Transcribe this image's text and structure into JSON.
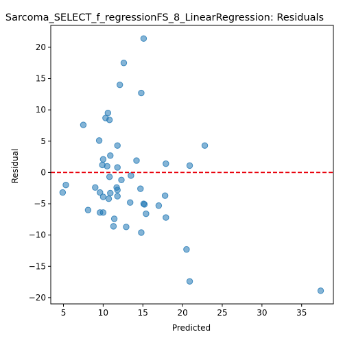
{
  "chart_data": {
    "type": "scatter",
    "title": "Sarcoma_SELECT_f_regressionFS_8_LinearRegression: Residuals",
    "xlabel": "Predicted",
    "ylabel": "Residual",
    "xlim": [
      3.4,
      39.0
    ],
    "ylim": [
      -21.0,
      23.5
    ],
    "xticks": [
      5,
      10,
      15,
      20,
      25,
      30,
      35
    ],
    "yticks": [
      -20,
      -15,
      -10,
      -5,
      0,
      5,
      10,
      15,
      20
    ],
    "grid": false,
    "reference_line": {
      "y": 0,
      "color": "#e8000b",
      "style": "dashed"
    },
    "point_color": "#1f77b4",
    "point_alpha": 0.55,
    "points": [
      [
        15.1,
        21.4
      ],
      [
        12.6,
        17.5
      ],
      [
        12.1,
        14.0
      ],
      [
        14.8,
        12.7
      ],
      [
        10.6,
        9.5
      ],
      [
        10.3,
        8.7
      ],
      [
        10.8,
        8.4
      ],
      [
        7.5,
        7.6
      ],
      [
        9.5,
        5.1
      ],
      [
        11.8,
        4.3
      ],
      [
        22.8,
        4.3
      ],
      [
        10.9,
        2.7
      ],
      [
        10.0,
        2.1
      ],
      [
        14.2,
        1.9
      ],
      [
        17.9,
        1.4
      ],
      [
        9.9,
        1.2
      ],
      [
        20.9,
        1.1
      ],
      [
        10.5,
        1.0
      ],
      [
        11.8,
        0.8
      ],
      [
        10.8,
        -0.7
      ],
      [
        13.5,
        -0.5
      ],
      [
        12.3,
        -1.2
      ],
      [
        5.3,
        -2.0
      ],
      [
        9.0,
        -2.4
      ],
      [
        11.7,
        -2.4
      ],
      [
        11.8,
        -2.8
      ],
      [
        14.7,
        -2.6
      ],
      [
        4.9,
        -3.2
      ],
      [
        9.6,
        -3.2
      ],
      [
        10.9,
        -3.3
      ],
      [
        10.0,
        -3.9
      ],
      [
        11.8,
        -3.8
      ],
      [
        10.7,
        -4.2
      ],
      [
        17.8,
        -3.7
      ],
      [
        13.4,
        -4.8
      ],
      [
        15.1,
        -5.0
      ],
      [
        15.2,
        -5.1
      ],
      [
        17.0,
        -5.3
      ],
      [
        8.1,
        -6.0
      ],
      [
        9.6,
        -6.4
      ],
      [
        10.0,
        -6.4
      ],
      [
        15.4,
        -6.6
      ],
      [
        11.4,
        -7.4
      ],
      [
        17.9,
        -7.2
      ],
      [
        11.3,
        -8.6
      ],
      [
        12.9,
        -8.7
      ],
      [
        14.8,
        -9.6
      ],
      [
        20.5,
        -12.3
      ],
      [
        20.9,
        -17.4
      ],
      [
        37.4,
        -18.9
      ]
    ]
  }
}
